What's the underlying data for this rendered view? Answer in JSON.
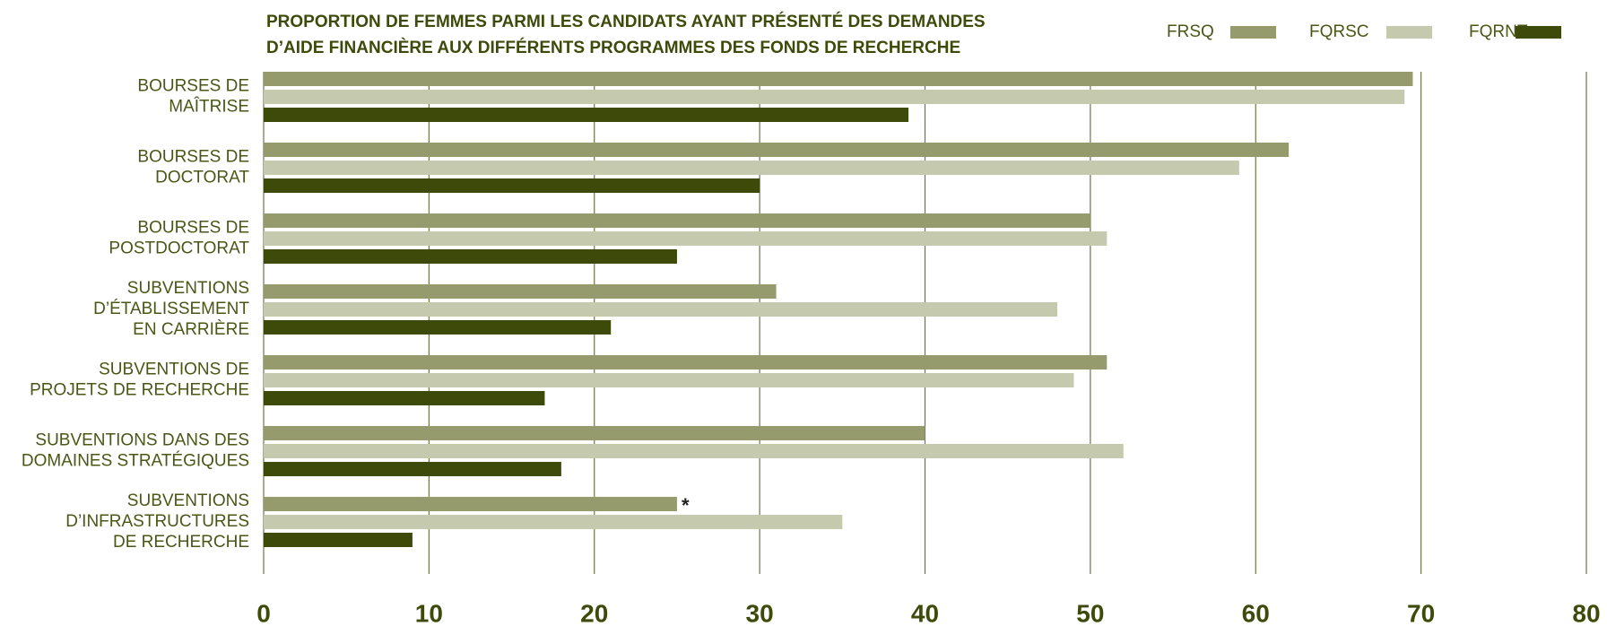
{
  "chart_data": {
    "type": "hbar",
    "title": [
      "PROPORTION DE FEMMES PARMI LES CANDIDATS AYANT PRÉSENTÉ DES DEMANDES",
      "D’AIDE FINANCIÈRE AUX DIFFÉRENTS PROGRAMMES DES FONDS DE RECHERCHE"
    ],
    "categories": [
      [
        "BOURSES DE",
        "MAÎTRISE"
      ],
      [
        "BOURSES DE",
        "DOCTORAT"
      ],
      [
        "BOURSES DE",
        "POSTDOCTORAT"
      ],
      [
        "SUBVENTIONS",
        "D’ÉTABLISSEMENT",
        "EN CARRIÈRE"
      ],
      [
        "SUBVENTIONS DE",
        "PROJETS DE RECHERCHE"
      ],
      [
        "SUBVENTIONS DANS DES",
        "DOMAINES STRATÉGIQUES"
      ],
      [
        "SUBVENTIONS",
        "D’INFRASTRUCTURES",
        "DE RECHERCHE"
      ]
    ],
    "series": [
      {
        "name": "FRSQ",
        "color": "#959b6d",
        "values": [
          69.5,
          62,
          50,
          31,
          51,
          40,
          25
        ]
      },
      {
        "name": "FQRSC",
        "color": "#c5c9ad",
        "values": [
          69,
          59,
          51,
          48,
          49,
          52,
          35
        ]
      },
      {
        "name": "FQRNT",
        "color": "#3d4a0a",
        "values": [
          39,
          30,
          25,
          21,
          17,
          18,
          9
        ]
      }
    ],
    "annotations": [
      {
        "text": "*",
        "series": 0,
        "category": 6
      }
    ],
    "xlim": [
      0,
      80
    ],
    "xticks": [
      0,
      10,
      20,
      30,
      40,
      50,
      60,
      70,
      80
    ],
    "grid": true,
    "legend": "top-right"
  }
}
